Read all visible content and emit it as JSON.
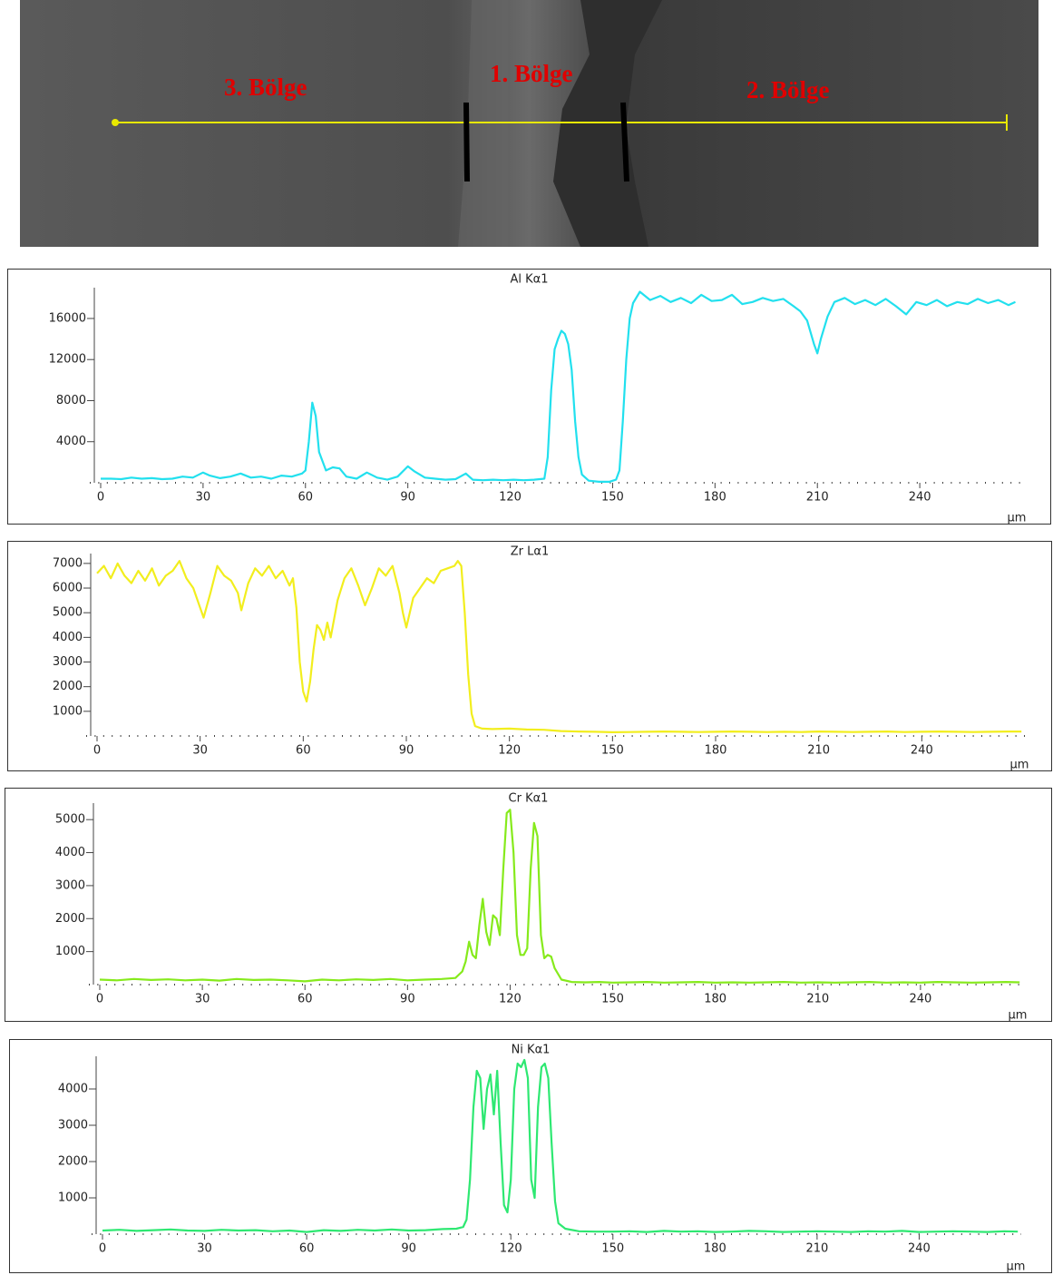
{
  "image": {
    "labels": [
      "3. Bölge",
      "1. Bölge",
      "2. Bölge"
    ]
  },
  "chart_data": [
    {
      "type": "line",
      "title": "Al Kα1",
      "x_label": "µm",
      "color": "#22e0ee",
      "xlim": [
        0,
        270
      ],
      "xticks": [
        0,
        30,
        60,
        90,
        120,
        150,
        180,
        210,
        240
      ],
      "ylim": [
        0,
        19000
      ],
      "yticks": [
        4000,
        8000,
        12000,
        16000
      ],
      "x": [
        0,
        3,
        6,
        9,
        12,
        15,
        18,
        21,
        24,
        27,
        30,
        32,
        35,
        38,
        41,
        44,
        47,
        50,
        53,
        56,
        59,
        60,
        61,
        62,
        63,
        64,
        66,
        68,
        70,
        72,
        75,
        78,
        81,
        84,
        87,
        90,
        92,
        95,
        98,
        101,
        104,
        107,
        109,
        112,
        115,
        118,
        121,
        124,
        127,
        130,
        131,
        132,
        133,
        134,
        135,
        136,
        137,
        138,
        139,
        140,
        141,
        143,
        146,
        149,
        151,
        152,
        153,
        154,
        155,
        156,
        158,
        161,
        164,
        167,
        170,
        173,
        176,
        179,
        182,
        185,
        188,
        191,
        194,
        197,
        200,
        203,
        205,
        207,
        209,
        210,
        211,
        213,
        215,
        218,
        221,
        224,
        227,
        230,
        233,
        236,
        239,
        242,
        245,
        248,
        251,
        254,
        257,
        260,
        263,
        266,
        268
      ],
      "values": [
        400,
        400,
        350,
        500,
        400,
        450,
        350,
        400,
        600,
        500,
        1000,
        700,
        450,
        600,
        900,
        500,
        600,
        400,
        700,
        600,
        900,
        1200,
        4000,
        7800,
        6500,
        3000,
        1200,
        1500,
        1400,
        600,
        400,
        1000,
        500,
        300,
        600,
        1600,
        1100,
        500,
        400,
        300,
        350,
        900,
        300,
        250,
        300,
        250,
        300,
        250,
        300,
        400,
        2500,
        9000,
        13000,
        14000,
        14800,
        14500,
        13500,
        11000,
        6000,
        2500,
        800,
        200,
        100,
        100,
        300,
        1200,
        6000,
        12000,
        16000,
        17500,
        18600,
        17800,
        18200,
        17600,
        18000,
        17500,
        18300,
        17700,
        17800,
        18300,
        17400,
        17600,
        18000,
        17700,
        17900,
        17200,
        16700,
        15800,
        13500,
        12600,
        14000,
        16200,
        17600,
        18000,
        17400,
        17800,
        17300,
        17900,
        17200,
        16400,
        17600,
        17300,
        17800,
        17200,
        17600,
        17400,
        17900,
        17500,
        17800,
        17300,
        17600
      ]
    },
    {
      "type": "line",
      "title": "Zr Lα1",
      "x_label": "µm",
      "color": "#f2ee1e",
      "xlim": [
        0,
        270
      ],
      "xticks": [
        0,
        30,
        60,
        90,
        120,
        150,
        180,
        210,
        240
      ],
      "ylim": [
        0,
        7400
      ],
      "yticks": [
        1000,
        2000,
        3000,
        4000,
        5000,
        6000,
        7000
      ],
      "x": [
        0,
        2,
        4,
        6,
        8,
        10,
        12,
        14,
        16,
        18,
        20,
        22,
        24,
        26,
        28,
        30,
        31,
        33,
        35,
        37,
        39,
        41,
        42,
        44,
        46,
        48,
        50,
        52,
        54,
        56,
        57,
        58,
        59,
        60,
        61,
        62,
        63,
        64,
        65,
        66,
        67,
        68,
        70,
        72,
        74,
        76,
        78,
        80,
        82,
        84,
        86,
        88,
        89,
        90,
        92,
        94,
        96,
        98,
        100,
        102,
        104,
        105,
        106,
        107,
        108,
        109,
        110,
        112,
        115,
        120,
        125,
        130,
        135,
        140,
        145,
        150,
        155,
        160,
        165,
        170,
        175,
        180,
        185,
        190,
        195,
        200,
        205,
        210,
        215,
        220,
        225,
        230,
        235,
        240,
        245,
        250,
        255,
        260,
        265,
        269
      ],
      "values": [
        6600,
        6900,
        6400,
        7000,
        6500,
        6200,
        6700,
        6300,
        6800,
        6100,
        6500,
        6700,
        7100,
        6400,
        6000,
        5200,
        4800,
        5800,
        6900,
        6500,
        6300,
        5800,
        5100,
        6200,
        6800,
        6500,
        6900,
        6400,
        6700,
        6100,
        6400,
        5200,
        3000,
        1800,
        1400,
        2200,
        3500,
        4500,
        4300,
        3900,
        4600,
        4000,
        5500,
        6400,
        6800,
        6100,
        5300,
        6000,
        6800,
        6500,
        6900,
        5800,
        5000,
        4400,
        5600,
        6000,
        6400,
        6200,
        6700,
        6800,
        6900,
        7100,
        6900,
        5000,
        2500,
        900,
        400,
        300,
        280,
        300,
        260,
        250,
        200,
        180,
        170,
        150,
        160,
        170,
        180,
        170,
        160,
        170,
        180,
        170,
        160,
        170,
        160,
        180,
        170,
        160,
        170,
        180,
        160,
        170,
        180,
        170,
        160,
        170,
        180,
        180
      ]
    },
    {
      "type": "line",
      "title": "Cr Kα1",
      "x_label": "µm",
      "color": "#86ea1c",
      "xlim": [
        0,
        270
      ],
      "xticks": [
        0,
        30,
        60,
        90,
        120,
        150,
        180,
        210,
        240
      ],
      "ylim": [
        0,
        5500
      ],
      "yticks": [
        1000,
        2000,
        3000,
        4000,
        5000
      ],
      "x": [
        0,
        5,
        10,
        15,
        20,
        25,
        30,
        35,
        40,
        45,
        50,
        55,
        60,
        65,
        70,
        75,
        80,
        85,
        90,
        95,
        100,
        104,
        106,
        107,
        108,
        109,
        110,
        111,
        112,
        113,
        114,
        115,
        116,
        117,
        118,
        119,
        120,
        121,
        122,
        123,
        124,
        125,
        126,
        127,
        128,
        129,
        130,
        131,
        132,
        133,
        135,
        138,
        142,
        146,
        150,
        155,
        160,
        165,
        170,
        175,
        180,
        185,
        190,
        195,
        200,
        205,
        210,
        215,
        220,
        225,
        230,
        235,
        240,
        245,
        250,
        255,
        260,
        265,
        269
      ],
      "values": [
        150,
        130,
        170,
        140,
        160,
        130,
        150,
        120,
        170,
        140,
        150,
        130,
        100,
        150,
        130,
        160,
        140,
        170,
        130,
        150,
        170,
        200,
        400,
        700,
        1300,
        900,
        800,
        1800,
        2600,
        1600,
        1200,
        2100,
        2000,
        1500,
        3500,
        5200,
        5300,
        4000,
        1500,
        900,
        900,
        1100,
        3500,
        4900,
        4500,
        1500,
        800,
        900,
        850,
        500,
        150,
        80,
        70,
        80,
        60,
        70,
        80,
        60,
        70,
        80,
        60,
        70,
        60,
        70,
        80,
        60,
        70,
        60,
        70,
        80,
        60,
        70,
        60,
        80,
        70,
        60,
        70,
        80,
        70
      ]
    },
    {
      "type": "line",
      "title": "Ni Kα1",
      "x_label": "µm",
      "color": "#2ee872",
      "xlim": [
        0,
        270
      ],
      "xticks": [
        0,
        30,
        60,
        90,
        120,
        150,
        180,
        210,
        240
      ],
      "ylim": [
        0,
        4900
      ],
      "yticks": [
        1000,
        2000,
        3000,
        4000
      ],
      "x": [
        0,
        5,
        10,
        15,
        20,
        25,
        30,
        35,
        40,
        45,
        50,
        55,
        60,
        65,
        70,
        75,
        80,
        85,
        90,
        95,
        100,
        104,
        106,
        107,
        108,
        109,
        110,
        111,
        112,
        113,
        114,
        115,
        116,
        117,
        118,
        119,
        120,
        121,
        122,
        123,
        124,
        125,
        126,
        127,
        128,
        129,
        130,
        131,
        132,
        133,
        134,
        136,
        140,
        145,
        150,
        155,
        160,
        165,
        170,
        175,
        180,
        185,
        190,
        195,
        200,
        205,
        210,
        215,
        220,
        225,
        230,
        235,
        240,
        245,
        250,
        255,
        260,
        265,
        269
      ],
      "values": [
        100,
        120,
        90,
        110,
        130,
        100,
        90,
        120,
        100,
        110,
        80,
        100,
        60,
        110,
        90,
        120,
        100,
        130,
        100,
        110,
        140,
        150,
        200,
        400,
        1500,
        3500,
        4500,
        4300,
        2900,
        4000,
        4400,
        3300,
        4500,
        2500,
        800,
        600,
        1500,
        4000,
        4700,
        4600,
        4800,
        4300,
        1500,
        1000,
        3500,
        4600,
        4700,
        4300,
        2500,
        900,
        300,
        150,
        80,
        70,
        70,
        80,
        60,
        90,
        70,
        80,
        60,
        70,
        90,
        80,
        60,
        70,
        80,
        70,
        60,
        80,
        70,
        90,
        60,
        70,
        80,
        70,
        60,
        80,
        70
      ]
    }
  ]
}
